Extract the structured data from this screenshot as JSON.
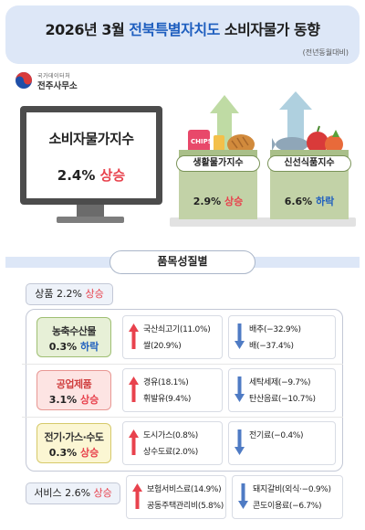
{
  "header": {
    "title_pre": "2026년 3월 ",
    "title_accent": "전북특별자치도",
    "title_post": " 소비자물가 동향",
    "subtitle": "(전년동월대비)"
  },
  "logo": {
    "small": "국가데이터처",
    "large": "전주사무소"
  },
  "cpi": {
    "label": "소비자물가지수",
    "value": "2.4%",
    "direction": "상승"
  },
  "boxes": [
    {
      "label": "생활물가지수",
      "value": "2.9%",
      "direction": "상승"
    },
    {
      "label": "신선식품지수",
      "value": "6.6%",
      "direction": "하락"
    }
  ],
  "section_title": "품목성질별",
  "goods": {
    "label": "상품",
    "value": "2.2%",
    "direction": "상승"
  },
  "categories": [
    {
      "name": "농축수산물",
      "value": "0.3%",
      "direction": "하락",
      "up": [
        "국산쇠고기(11.0%)",
        "쌀(20.9%)"
      ],
      "down": [
        "배추(−32.9%)",
        "배(−37.4%)"
      ]
    },
    {
      "name": "공업제품",
      "value": "3.1%",
      "direction": "상승",
      "up": [
        "경유(18.1%)",
        "휘발유(9.4%)"
      ],
      "down": [
        "세탁세제(−9.7%)",
        "탄산음료(−10.7%)"
      ]
    },
    {
      "name": "전기·가스·수도",
      "value": "0.3%",
      "direction": "상승",
      "up": [
        "도시가스(0.8%)",
        "상수도료(2.0%)"
      ],
      "down": [
        "전기료(−0.4%)"
      ]
    }
  ],
  "services": {
    "label": "서비스",
    "value": "2.6%",
    "direction": "상승",
    "up": [
      "보험서비스료(14.9%)",
      "공동주택관리비(5.8%)"
    ],
    "down": [
      "돼지갈비(외식·−0.9%)",
      "콘도이용료(−6.7%)"
    ]
  },
  "colors": {
    "up": "#e8424d",
    "down": "#1f5fbf",
    "header_bg": "#dde7f7"
  },
  "icons": [
    "up-arrow-icon",
    "down-arrow-icon",
    "taeguk-icon"
  ]
}
